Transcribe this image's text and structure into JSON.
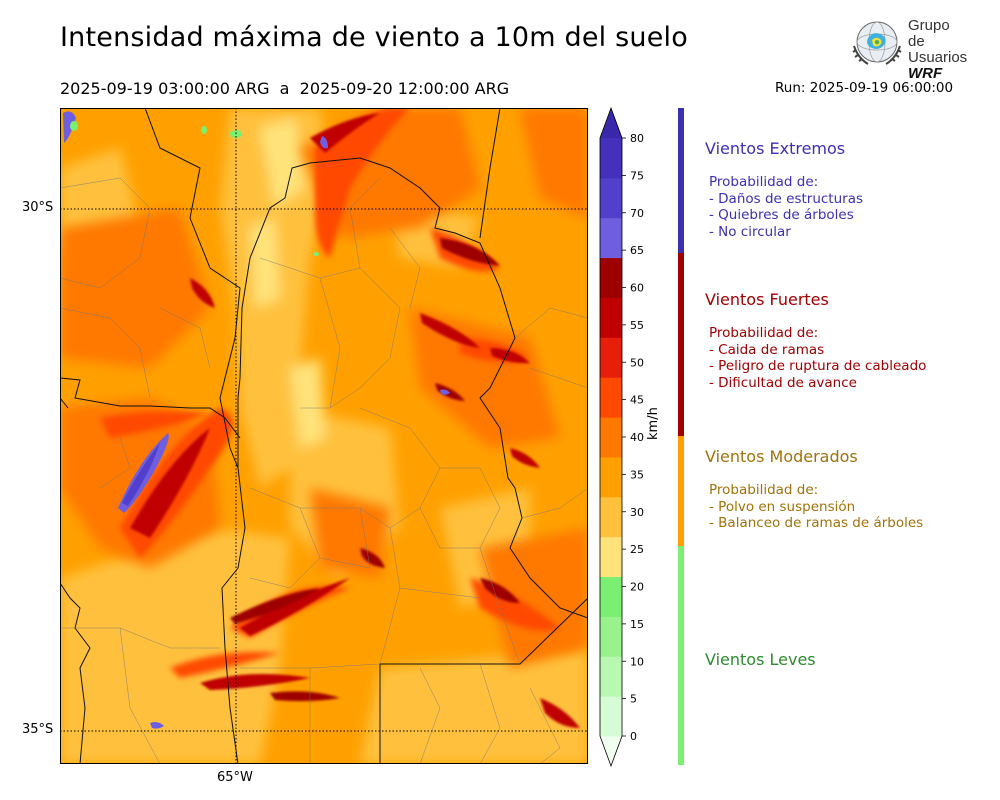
{
  "header": {
    "title": "Intensidad máxima de viento a 10m del suelo",
    "period_start": "2025-09-19 03:00:00 ARG",
    "period_sep": "a",
    "period_end": "2025-09-20 12:00:00 ARG",
    "run": "Run: 2025-09-19 06:00:00"
  },
  "logo": {
    "line1": "Grupo de",
    "line2": "Usuarios",
    "line3": "WRF"
  },
  "map": {
    "lat_labels": [
      "30°S",
      "35°S"
    ],
    "lon_labels": [
      "65°W"
    ]
  },
  "colorbar": {
    "unit": "km/h",
    "ticks": [
      "0",
      "5",
      "10",
      "15",
      "20",
      "25",
      "30",
      "35",
      "40",
      "45",
      "50",
      "55",
      "60",
      "65",
      "70",
      "75",
      "80"
    ],
    "colors": [
      "#f0fff0",
      "#d6fcd6",
      "#b8f8b0",
      "#98f38c",
      "#7aef72",
      "#ffe37a",
      "#ffc13c",
      "#ffa000",
      "#ff7800",
      "#ff4800",
      "#e61e0a",
      "#c00000",
      "#9e0000",
      "#6f5fe0",
      "#5240cc",
      "#4430bb",
      "#3a28aa"
    ]
  },
  "categories": [
    {
      "title": "Vientos Extremos",
      "color": "#3b2fb5",
      "lines": [
        "Probabilidad de:",
        "- Daños de estructuras",
        "- Quiebres de árboles",
        "- No circular"
      ]
    },
    {
      "title": "Vientos Fuertes",
      "color": "#a00000",
      "lines": [
        "Probabilidad de:",
        "- Caida de ramas",
        "- Peligro de ruptura de cableado",
        "- Dificultad de avance"
      ]
    },
    {
      "title": "Vientos Moderados",
      "color": "#a0720a",
      "lines": [
        "Probabilidad de:",
        "- Polvo en suspensión",
        "- Balanceo de ramas de árboles"
      ]
    },
    {
      "title": "Vientos Leves",
      "color": "#2e8b2e",
      "lines": []
    }
  ],
  "legend_bar_colors": [
    "#3b2fb5",
    "#a00000",
    "#ffa000",
    "#7aef72"
  ]
}
